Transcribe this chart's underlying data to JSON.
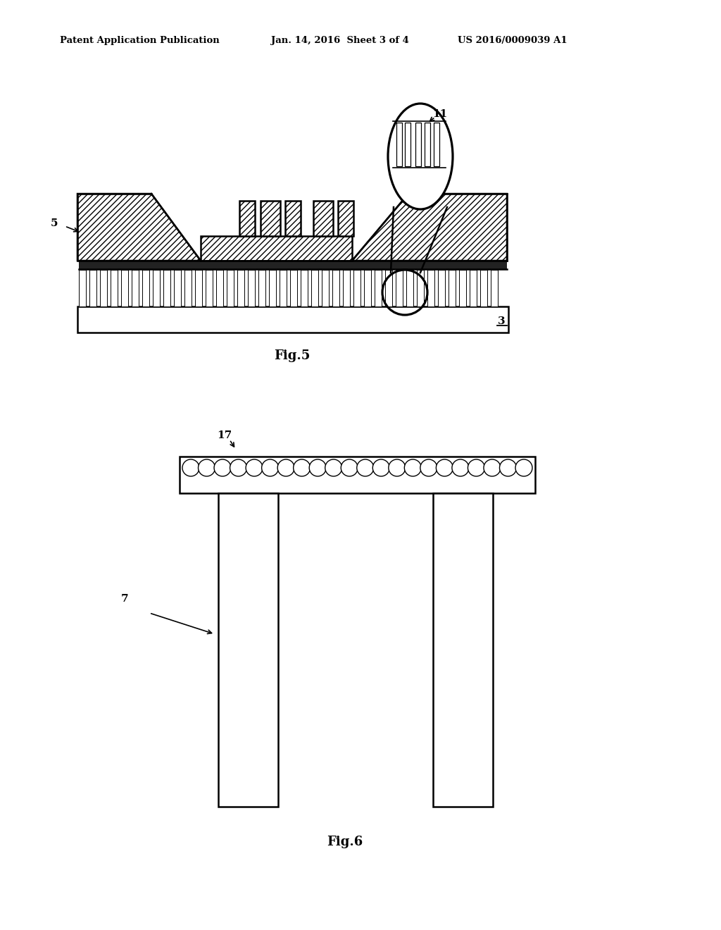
{
  "bg_color": "#ffffff",
  "line_color": "#000000",
  "header_left": "Patent Application Publication",
  "header_mid": "Jan. 14, 2016  Sheet 3 of 4",
  "header_right": "US 2016/0009039 A1",
  "fig5_label": "Fig.5",
  "fig6_label": "Fig.6",
  "label_5": "5",
  "label_3": "3",
  "label_11": "11",
  "label_7": "7",
  "label_17": "17"
}
